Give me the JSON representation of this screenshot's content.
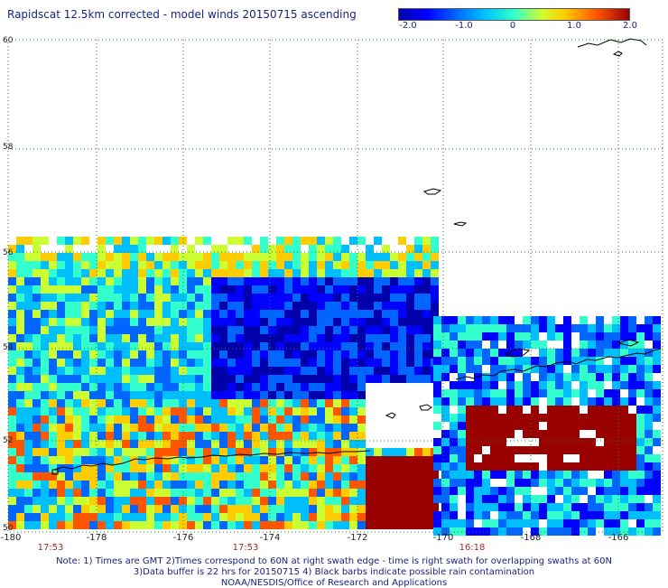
{
  "title": "Rapidscat 12.5km corrected - model winds 20150715 ascending",
  "colorbar": {
    "labels": [
      "-2.0",
      "-1.0",
      "0",
      "1.0",
      "2.0"
    ],
    "colors": [
      "#0000aa",
      "#0000ff",
      "#0066ff",
      "#00bfff",
      "#33ffcc",
      "#ccff33",
      "#ffcc00",
      "#ff5500",
      "#990000"
    ]
  },
  "lat_labels": [
    "60",
    "58",
    "56",
    "54",
    "52",
    "50"
  ],
  "lon_labels": [
    "-180",
    "-178",
    "-176",
    "-174",
    "-172",
    "-170",
    "-168",
    "-166"
  ],
  "times": [
    "17:53",
    "17:53",
    "16:18"
  ],
  "notes": [
    "Note: 1) Times are GMT 2)Times correspond to 60N at right swath edge - time is right swath for overlapping swaths at 60N",
    "3)Data buffer is 22 hrs for 20150715 4) Black barbs indicate possible rain contamination",
    "NOAA/NESDIS/Office of Research and Applications"
  ],
  "map_extent": {
    "lon": [
      -180,
      -165
    ],
    "lat": [
      50,
      60
    ]
  }
}
